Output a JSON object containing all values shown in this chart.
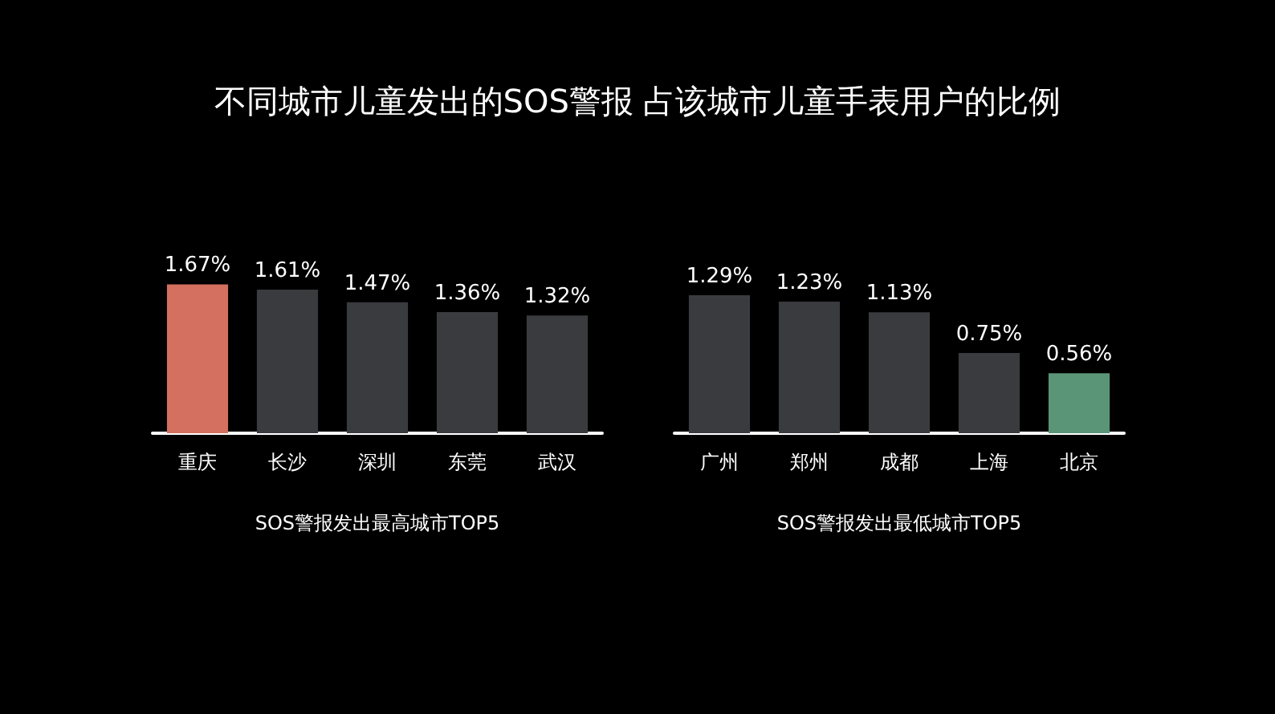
{
  "chart_data": [
    {
      "type": "bar",
      "title": "不同城市儿童发出的SOS警报  占该城市儿童手表用户的比例",
      "xlabel": "SOS警报发出最高城市TOP5",
      "categories": [
        "重庆",
        "长沙",
        "深圳",
        "东莞",
        "武汉"
      ],
      "values": [
        1.67,
        1.61,
        1.47,
        1.36,
        1.32
      ],
      "colors": [
        "#d3705f",
        "#3a3b3f",
        "#3a3b3f",
        "#3a3b3f",
        "#3a3b3f"
      ],
      "value_labels": [
        "1.67%",
        "1.61%",
        "1.47%",
        "1.36%",
        "1.32%"
      ]
    },
    {
      "type": "bar",
      "xlabel": "SOS警报发出最低城市TOP5",
      "categories": [
        "广州",
        "郑州",
        "成都",
        "上海",
        "北京"
      ],
      "values": [
        1.29,
        1.23,
        1.13,
        0.75,
        0.56
      ],
      "colors": [
        "#3a3b3f",
        "#3a3b3f",
        "#3a3b3f",
        "#3a3b3f",
        "#5a9577"
      ],
      "value_labels": [
        "1.29%",
        "1.23%",
        "1.13%",
        "0.75%",
        "0.56%"
      ]
    }
  ]
}
